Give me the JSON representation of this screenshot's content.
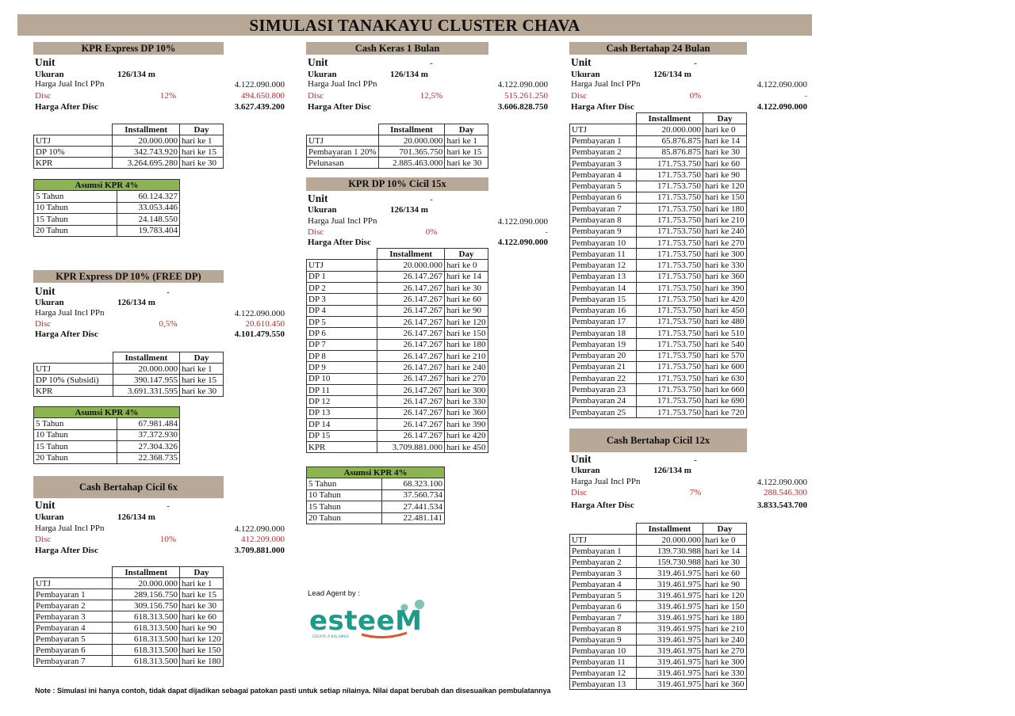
{
  "title": "SIMULASI TANAKAYU CLUSTER CHAVA",
  "labels": {
    "unit": "Unit",
    "ukuran": "Ukuran",
    "harga": "Harga Jual Incl PPn",
    "disc": "Disc",
    "after": "Harga After Disc",
    "installment": "Installment",
    "day": "Day"
  },
  "sections": [
    {
      "title": "KPR Express DP 10%",
      "unit": "",
      "ukuran": "126/134 m",
      "harga": "4.122.090.000",
      "disc_pct": "12%",
      "disc_val": "494.650.800",
      "after": "3.627.439.200",
      "rows": [
        [
          "UTJ",
          "20.000.000",
          "hari ke 1"
        ],
        [
          "DP 10%",
          "342.743.920",
          "hari ke 15"
        ],
        [
          "KPR",
          "3.264.695.280",
          "hari ke 30"
        ]
      ],
      "asumsi": {
        "title": "Asumsi KPR 4%",
        "rows": [
          [
            "5 Tahun",
            "60.124.327"
          ],
          [
            "10 Tahun",
            "33.053.446"
          ],
          [
            "15 Tahun",
            "24.148.550"
          ],
          [
            "20 Tahun",
            "19.783.404"
          ]
        ]
      }
    },
    {
      "title": "Cash Keras 1 Bulan",
      "unit": "-",
      "ukuran": "126/134 m",
      "harga": "4.122.090.000",
      "disc_pct": "12,5%",
      "disc_val": "515.261.250",
      "after": "3.606.828.750",
      "rows": [
        [
          "UTJ",
          "20.000.000",
          "hari ke 1"
        ],
        [
          "Pembayaran 1 20%",
          "701.365.750",
          "hari ke 15"
        ],
        [
          "Pelunasan",
          "2.885.463.000",
          "hari ke 30"
        ]
      ]
    },
    {
      "title": "KPR DP 10% Cicil 15x",
      "unit": "-",
      "ukuran": "126/134 m",
      "harga": "4.122.090.000",
      "disc_pct": "0%",
      "disc_val": "-",
      "after": "4.122.090.000",
      "rows": [
        [
          "UTJ",
          "20.000.000",
          "hari ke 0"
        ],
        [
          "DP 1",
          "26.147.267",
          "hari ke 14"
        ],
        [
          "DP 2",
          "26.147.267",
          "hari ke 30"
        ],
        [
          "DP 3",
          "26.147.267",
          "hari ke 60"
        ],
        [
          "DP 4",
          "26.147.267",
          "hari ke 90"
        ],
        [
          "DP 5",
          "26.147.267",
          "hari ke 120"
        ],
        [
          "DP 6",
          "26.147.267",
          "hari ke 150"
        ],
        [
          "DP 7",
          "26.147.267",
          "hari ke 180"
        ],
        [
          "DP 8",
          "26.147.267",
          "hari ke 210"
        ],
        [
          "DP 9",
          "26.147.267",
          "hari ke 240"
        ],
        [
          "DP 10",
          "26.147.267",
          "hari ke 270"
        ],
        [
          "DP 11",
          "26.147.267",
          "hari ke 300"
        ],
        [
          "DP 12",
          "26.147.267",
          "hari ke 330"
        ],
        [
          "DP 13",
          "26.147.267",
          "hari ke 360"
        ],
        [
          "DP 14",
          "26.147.267",
          "hari ke 390"
        ],
        [
          "DP 15",
          "26.147.267",
          "hari ke 420"
        ],
        [
          "KPR",
          "3.709.881.000",
          "hari ke 450"
        ]
      ],
      "asumsi": {
        "title": "Asumsi KPR 4%",
        "rows": [
          [
            "5 Tahun",
            "68.323.100"
          ],
          [
            "10 Tahun",
            "37.560.734"
          ],
          [
            "15 Tahun",
            "27.441.534"
          ],
          [
            "20 Tahun",
            "22.481.141"
          ]
        ]
      }
    },
    {
      "title": "Cash Bertahap 24 Bulan",
      "unit": "-",
      "ukuran": "126/134 m",
      "harga": "4.122.090.000",
      "disc_pct": "0%",
      "disc_val": "-",
      "after": "4.122.090.000",
      "rows": [
        [
          "UTJ",
          "20.000.000",
          "hari ke 0"
        ],
        [
          "Pembayaran 1",
          "65.876.875",
          "hari ke 14"
        ],
        [
          "Pembayaran 2",
          "85.876.875",
          "hari ke 30"
        ],
        [
          "Pembayaran 3",
          "171.753.750",
          "hari ke 60"
        ],
        [
          "Pembayaran 4",
          "171.753.750",
          "hari ke 90"
        ],
        [
          "Pembayaran 5",
          "171.753.750",
          "hari ke 120"
        ],
        [
          "Pembayaran 6",
          "171.753.750",
          "hari ke 150"
        ],
        [
          "Pembayaran 7",
          "171.753.750",
          "hari ke 180"
        ],
        [
          "Pembayaran 8",
          "171.753.750",
          "hari ke 210"
        ],
        [
          "Pembayaran 9",
          "171.753.750",
          "hari ke 240"
        ],
        [
          "Pembayaran 10",
          "171.753.750",
          "hari ke 270"
        ],
        [
          "Pembayaran 11",
          "171.753.750",
          "hari ke 300"
        ],
        [
          "Pembayaran 12",
          "171.753.750",
          "hari ke 330"
        ],
        [
          "Pembayaran 13",
          "171.753.750",
          "hari ke 360"
        ],
        [
          "Pembayaran 14",
          "171.753.750",
          "hari ke 390"
        ],
        [
          "Pembayaran 15",
          "171.753.750",
          "hari ke 420"
        ],
        [
          "Pembayaran 16",
          "171.753.750",
          "hari ke 450"
        ],
        [
          "Pembayaran 17",
          "171.753.750",
          "hari ke 480"
        ],
        [
          "Pembayaran 18",
          "171.753.750",
          "hari ke 510"
        ],
        [
          "Pembayaran 19",
          "171.753.750",
          "hari ke 540"
        ],
        [
          "Pembayaran 20",
          "171.753.750",
          "hari ke 570"
        ],
        [
          "Pembayaran 21",
          "171.753.750",
          "hari ke 600"
        ],
        [
          "Pembayaran 22",
          "171.753.750",
          "hari ke 630"
        ],
        [
          "Pembayaran 23",
          "171.753.750",
          "hari ke 660"
        ],
        [
          "Pembayaran 24",
          "171.753.750",
          "hari ke 690"
        ],
        [
          "Pembayaran 25",
          "171.753.750",
          "hari ke 720"
        ]
      ]
    },
    {
      "title": "KPR Express DP 10% (FREE DP)",
      "unit": "-",
      "ukuran": "126/134 m",
      "harga": "4.122.090.000",
      "disc_pct": "0,5%",
      "disc_val": "20.610.450",
      "after": "4.101.479.550",
      "rows": [
        [
          "UTJ",
          "20.000.000",
          "hari ke 1"
        ],
        [
          "DP 10% (Subsidi)",
          "390.147.955",
          "hari ke 15"
        ],
        [
          "KPR",
          "3.691.331.595",
          "hari ke 30"
        ]
      ],
      "asumsi": {
        "title": "Asumsi KPR 4%",
        "rows": [
          [
            "5 Tahun",
            "67.981.484"
          ],
          [
            "10 Tahun",
            "37.372.930"
          ],
          [
            "15 Tahun",
            "27.304.326"
          ],
          [
            "20 Tahun",
            "22.368.735"
          ]
        ]
      }
    },
    {
      "title": "Cash Bertahap Cicil 6x",
      "unit": "-",
      "ukuran": "126/134 m",
      "harga": "4.122.090.000",
      "disc_pct": "10%",
      "disc_val": "412.209.000",
      "after": "3.709.881.000",
      "rows": [
        [
          "UTJ",
          "20.000.000",
          "hari ke 1"
        ],
        [
          "Pembayaran 1",
          "289.156.750",
          "hari ke 15"
        ],
        [
          "Pembayaran 2",
          "309.156.750",
          "hari ke 30"
        ],
        [
          "Pembayaran 3",
          "618.313.500",
          "hari ke 60"
        ],
        [
          "Pembayaran 4",
          "618.313.500",
          "hari ke 90"
        ],
        [
          "Pembayaran 5",
          "618.313.500",
          "hari ke 120"
        ],
        [
          "Pembayaran 6",
          "618.313.500",
          "hari ke 150"
        ],
        [
          "Pembayaran 7",
          "618.313.500",
          "hari ke 180"
        ]
      ]
    },
    {
      "title": "Cash Bertahap Cicil 12x",
      "unit": "-",
      "ukuran": "126/134 m",
      "harga": "4.122.090.000",
      "disc_pct": "7%",
      "disc_val": "288.546.300",
      "after": "3.833.543.700",
      "rows": [
        [
          "UTJ",
          "20.000.000",
          "hari ke 0"
        ],
        [
          "Pembayaran 1",
          "139.730.988",
          "hari ke 14"
        ],
        [
          "Pembayaran 2",
          "159.730.988",
          "hari ke 30"
        ],
        [
          "Pembayaran 3",
          "319.461.975",
          "hari ke 60"
        ],
        [
          "Pembayaran 4",
          "319.461.975",
          "hari ke 90"
        ],
        [
          "Pembayaran 5",
          "319.461.975",
          "hari ke 120"
        ],
        [
          "Pembayaran 6",
          "319.461.975",
          "hari ke 150"
        ],
        [
          "Pembayaran 7",
          "319.461.975",
          "hari ke 180"
        ],
        [
          "Pembayaran 8",
          "319.461.975",
          "hari ke 210"
        ],
        [
          "Pembayaran 9",
          "319.461.975",
          "hari ke 240"
        ],
        [
          "Pembayaran 10",
          "319.461.975",
          "hari ke 270"
        ],
        [
          "Pembayaran 11",
          "319.461.975",
          "hari ke 300"
        ],
        [
          "Pembayaran 12",
          "319.461.975",
          "hari ke 330"
        ],
        [
          "Pembayaran 13",
          "319.461.975",
          "hari ke 360"
        ]
      ]
    }
  ],
  "lead_agent": "Lead Agent by :",
  "logo": {
    "text": "esteeM",
    "tagline": "CREATE A BIG SMILE",
    "colors": {
      "teal": "#1f9a86",
      "dot": "#7fc3b5",
      "smile": "#e0542b"
    }
  },
  "note": "Note : Simulasi ini hanya contoh, tidak dapat dijadikan sebagai patokan pasti untuk setiap nilainya. Nilai dapat berubah dan disesuaikan pembulatannya",
  "colors": {
    "header_bg": "#b8a898",
    "asumsi_bg": "#8db452",
    "disc_red": "#d0262b"
  }
}
